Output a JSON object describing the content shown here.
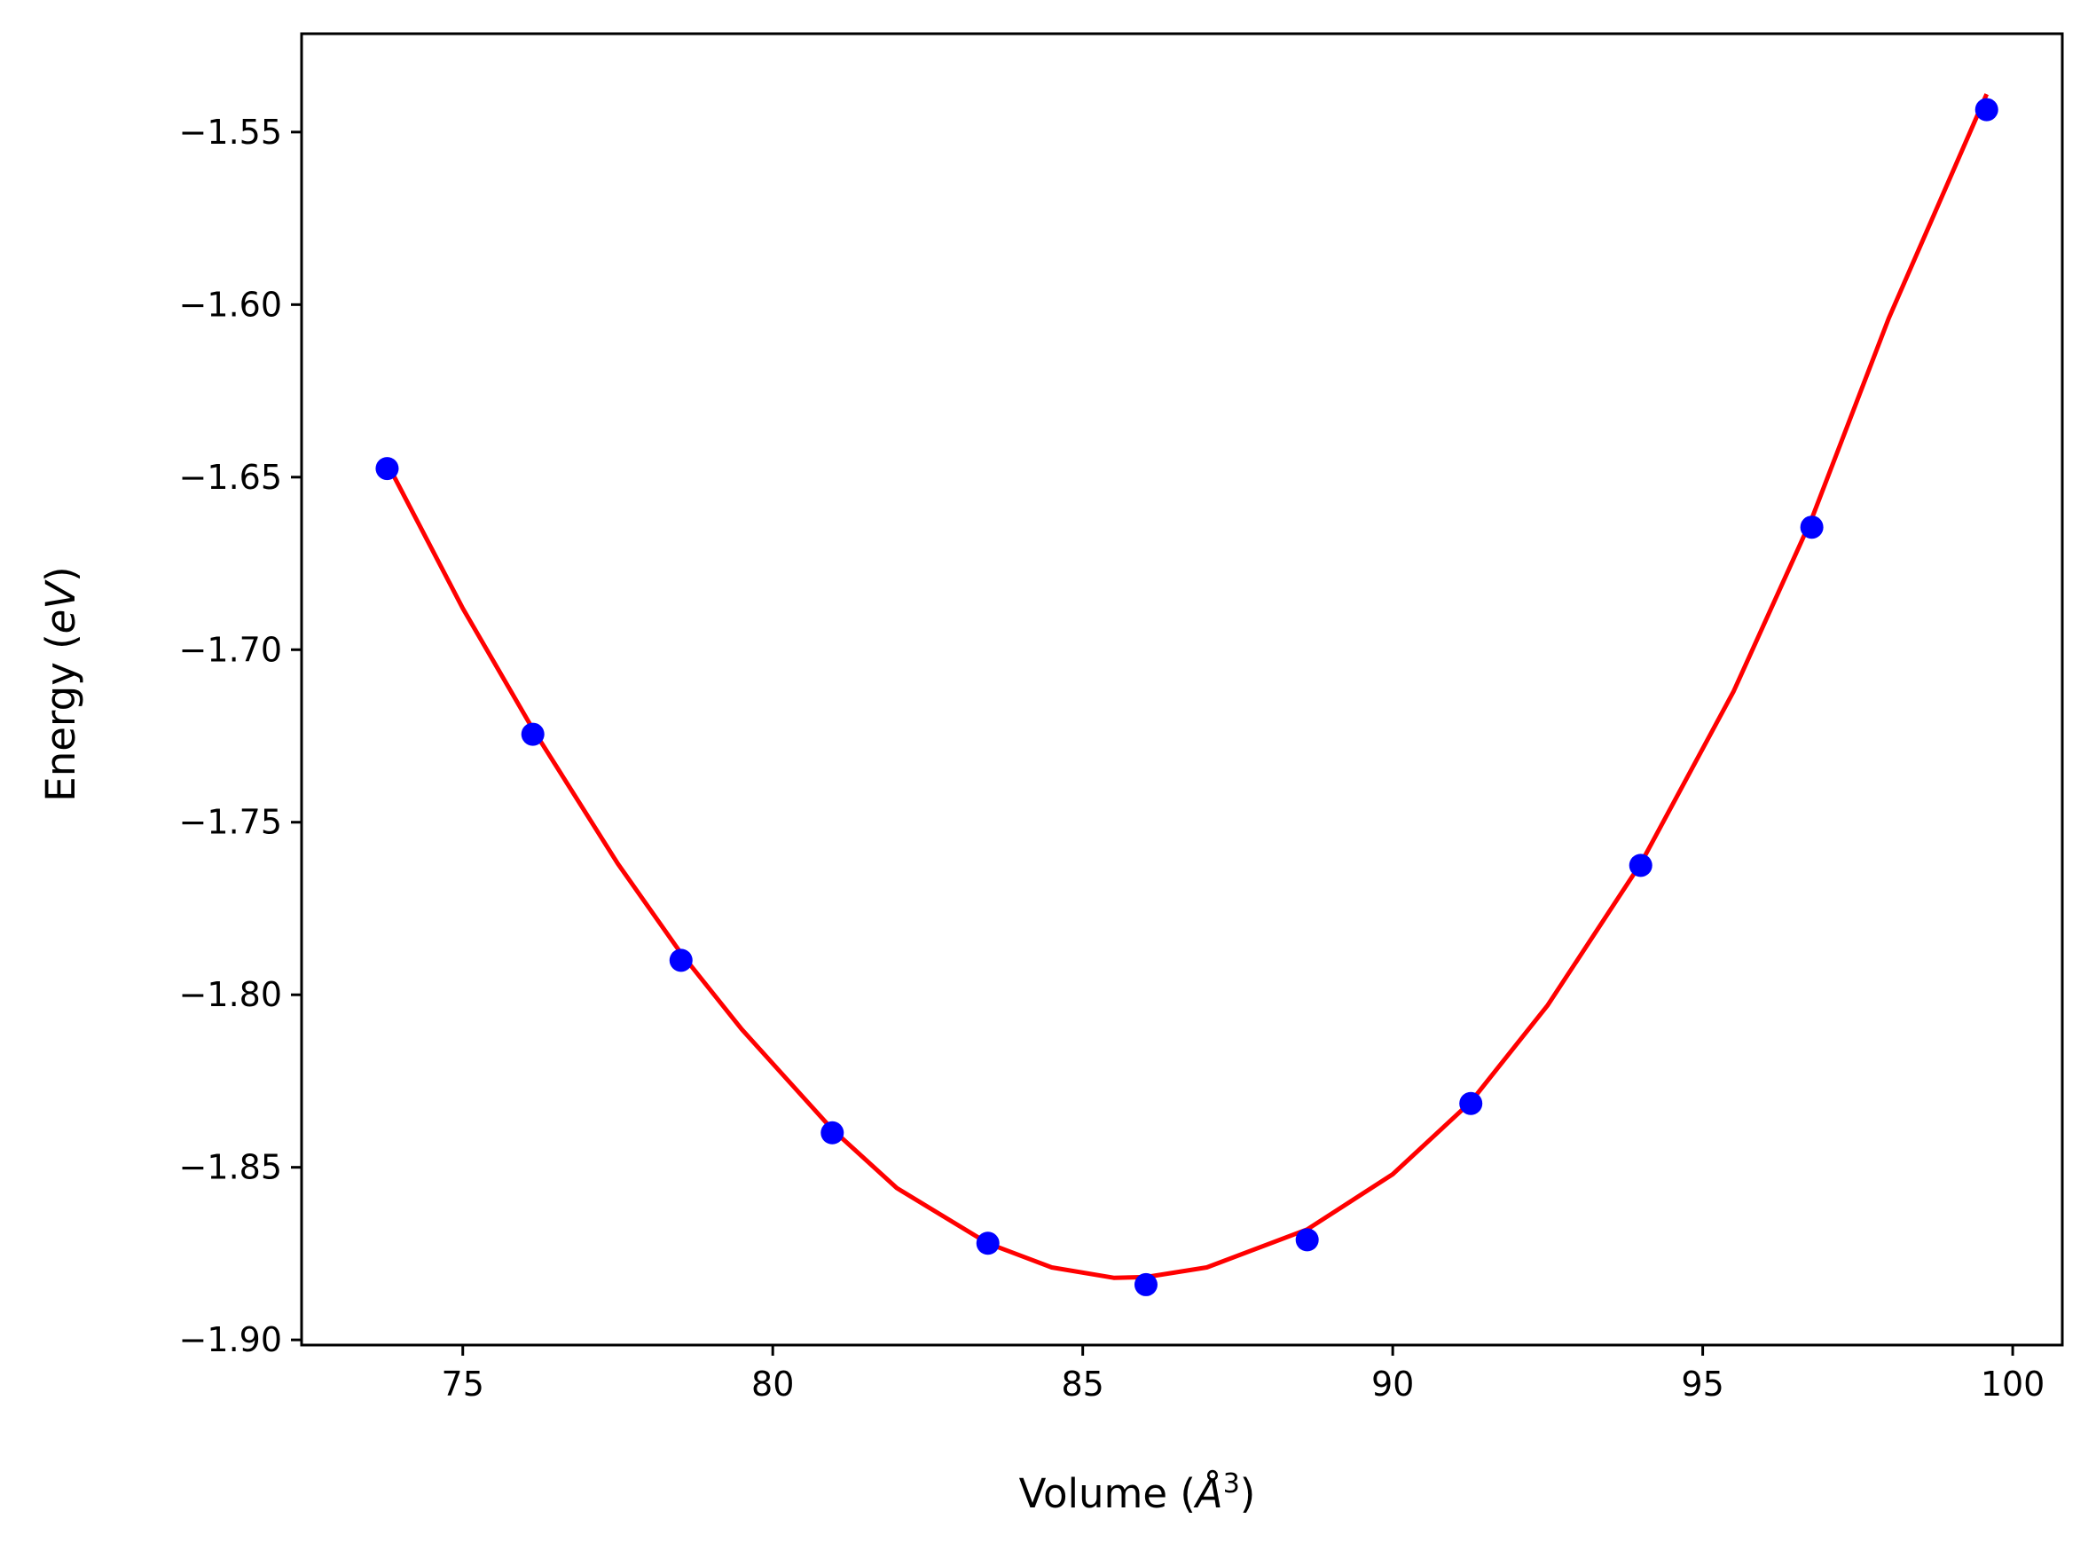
{
  "chart_data": {
    "type": "scatter",
    "title": "",
    "xlabel": "Volume (",
    "xlabel_symbol": "Å",
    "xlabel_sup": "3",
    "xlabel_end": ")",
    "ylabel": "Energy (",
    "ylabel_unit": "eV",
    "ylabel_end": ")",
    "xlim": [
      72.4,
      100.8
    ],
    "ylim": [
      -1.9015,
      -1.5215
    ],
    "x_ticks": [
      75,
      80,
      85,
      90,
      95,
      100
    ],
    "x_tick_labels": [
      "75",
      "80",
      "85",
      "90",
      "95",
      "100"
    ],
    "y_ticks": [
      -1.9,
      -1.85,
      -1.8,
      -1.75,
      -1.7,
      -1.65,
      -1.6,
      -1.55
    ],
    "y_tick_labels": [
      "−1.90",
      "−1.85",
      "−1.80",
      "−1.75",
      "−1.70",
      "−1.65",
      "−1.60",
      "−1.55"
    ],
    "grid": false,
    "series": [
      {
        "kind": "points",
        "color": "#0000ff",
        "x": [
          73.78,
          76.13,
          78.52,
          80.96,
          83.47,
          86.02,
          88.62,
          91.26,
          94.0,
          96.76,
          99.58
        ],
        "y": [
          -1.6475,
          -1.7245,
          -1.79,
          -1.84,
          -1.872,
          -1.884,
          -1.871,
          -1.8315,
          -1.7625,
          -1.6645,
          -1.5435
        ]
      },
      {
        "kind": "fit-line",
        "color": "#ff0000",
        "x": [
          73.78,
          75.0,
          76.13,
          77.5,
          78.52,
          79.5,
          80.96,
          82.0,
          83.47,
          84.5,
          85.5,
          86.02,
          87.0,
          88.62,
          90.0,
          91.26,
          92.5,
          94.0,
          95.5,
          96.76,
          98.0,
          99.58
        ],
        "y": [
          -1.646,
          -1.688,
          -1.723,
          -1.762,
          -1.788,
          -1.81,
          -1.839,
          -1.856,
          -1.872,
          -1.879,
          -1.882,
          -1.8818,
          -1.879,
          -1.868,
          -1.852,
          -1.831,
          -1.803,
          -1.762,
          -1.712,
          -1.662,
          -1.604,
          -1.539
        ]
      }
    ]
  }
}
